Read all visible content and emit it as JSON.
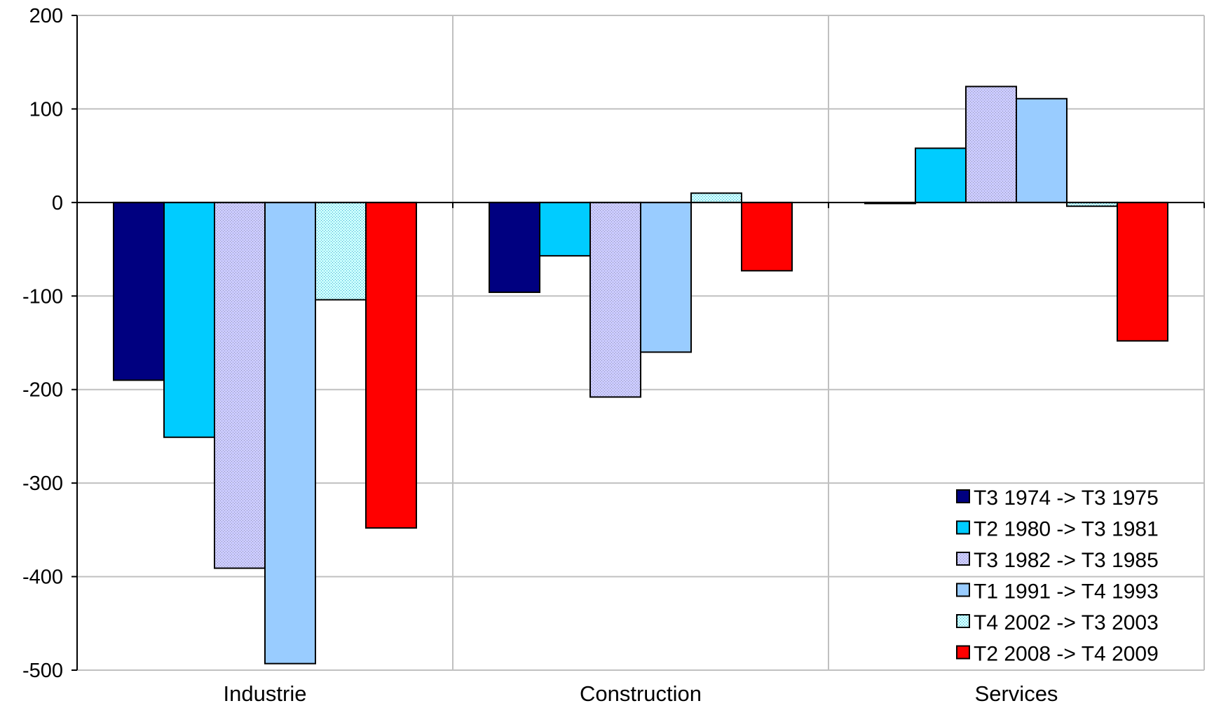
{
  "chart_data": {
    "type": "bar",
    "title": "",
    "xlabel": "",
    "ylabel": "",
    "categories": [
      "Industrie",
      "Construction",
      "Services"
    ],
    "ylim": [
      -500,
      200
    ],
    "yticks": [
      200,
      100,
      0,
      -100,
      -200,
      -300,
      -400,
      -500
    ],
    "grid": true,
    "legend_position": "bottom-right",
    "series": [
      {
        "name": "T3 1974 -> T3 1975",
        "color": "#000080",
        "pattern": "solid",
        "values": [
          -190,
          -96,
          -1
        ]
      },
      {
        "name": "T2 1980 -> T3 1981",
        "color": "#00CCFF",
        "pattern": "solid",
        "values": [
          -251,
          -57,
          58
        ]
      },
      {
        "name": "T3 1982 -> T3 1985",
        "color": "#CCCCFF",
        "pattern": "dotted",
        "values": [
          -391,
          -208,
          124
        ]
      },
      {
        "name": "T1 1991 -> T4 1993",
        "color": "#99CCFF",
        "pattern": "solid",
        "values": [
          -493,
          -160,
          111
        ]
      },
      {
        "name": "T4 2002 -> T3 2003",
        "color": "#CCFFFF",
        "pattern": "dotted",
        "values": [
          -104,
          10,
          -4
        ]
      },
      {
        "name": "T2 2008 -> T4 2009",
        "color": "#FF0000",
        "pattern": "solid",
        "values": [
          -348,
          -73,
          -148
        ]
      }
    ]
  }
}
